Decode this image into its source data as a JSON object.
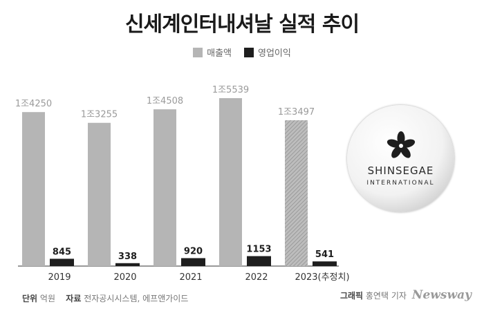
{
  "chart_data": {
    "type": "bar",
    "title": "신세계인터내셔날 실적 추이",
    "categories": [
      "2019",
      "2020",
      "2021",
      "2022",
      "2023(추정치)"
    ],
    "series": [
      {
        "name": "매출액",
        "values": [
          14250,
          13255,
          14508,
          15539,
          13497
        ],
        "labels": [
          "1조4250",
          "1조3255",
          "1조4508",
          "1조5539",
          "1조3497"
        ],
        "color": "#b5b5b5"
      },
      {
        "name": "영업이익",
        "values": [
          845,
          338,
          920,
          1153,
          541
        ],
        "labels": [
          "845",
          "338",
          "920",
          "1153",
          "541"
        ],
        "color": "#1e1e1e"
      }
    ],
    "estimated_index": 4,
    "ylim": [
      0,
      16500
    ],
    "grid": false,
    "legend_position": "top-center"
  },
  "logo": {
    "name": "SHINSEGAE",
    "sub": "INTERNATIONAL",
    "icon": "flower-icon"
  },
  "footer": {
    "unit_label": "단위",
    "unit_value": "억원",
    "source_label": "자료",
    "source_value": "전자공시시스템, 에프앤가이드",
    "graphic_label": "그래픽",
    "graphic_value": "홍연택 기자",
    "brand": "Newsway"
  }
}
